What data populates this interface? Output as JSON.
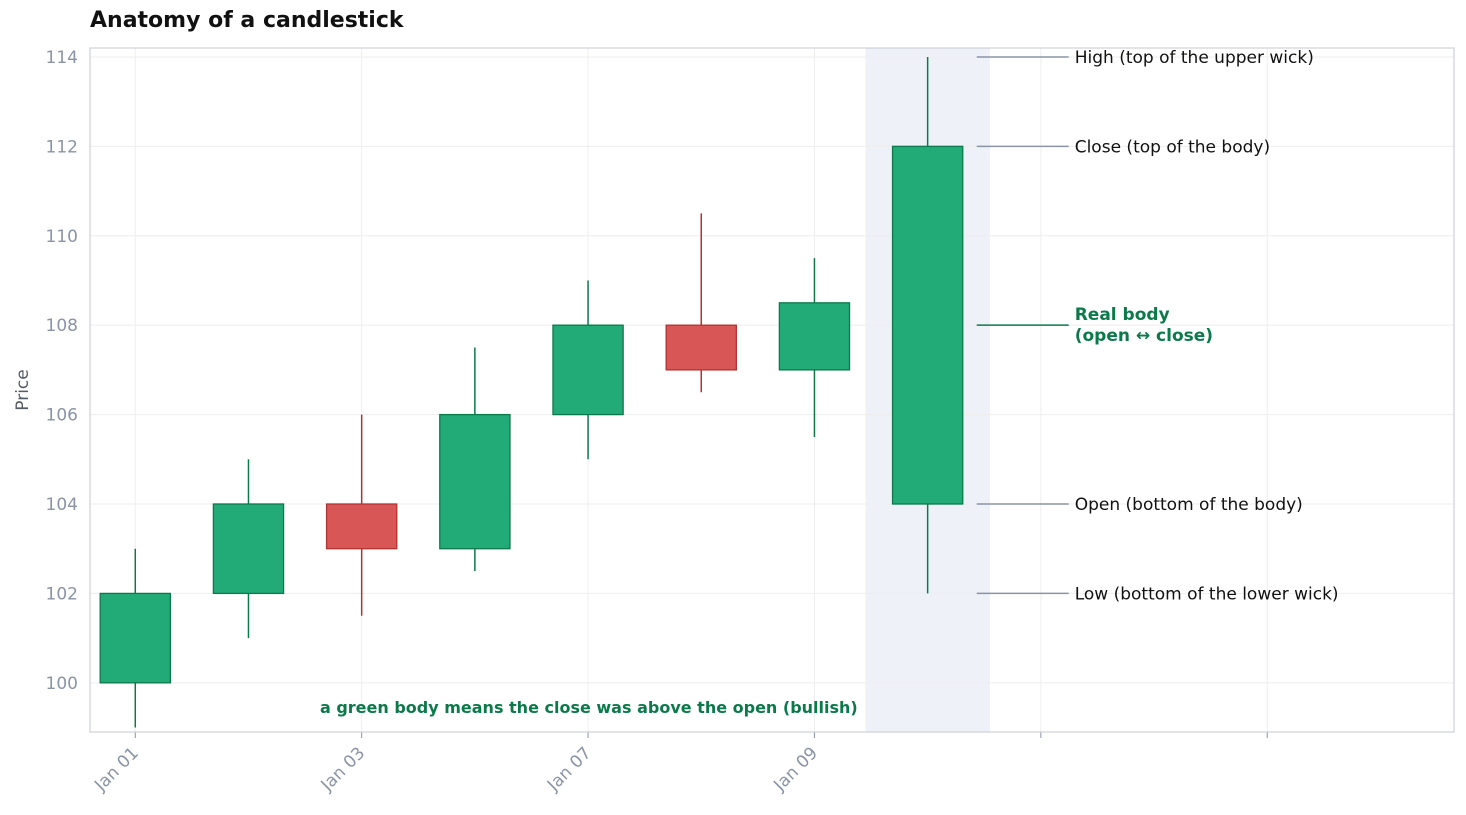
{
  "chart_data": {
    "type": "candlestick",
    "title": "Anatomy of a candlestick",
    "ylabel": "Price",
    "ylim": [
      98.9,
      114.2
    ],
    "yticks": [
      100,
      102,
      104,
      106,
      108,
      110,
      112,
      114
    ],
    "x_tick_labels": [
      "Jan 01",
      "Jan 03",
      "Jan 07",
      "Jan 09",
      "",
      ""
    ],
    "x_tick_index": [
      0,
      2,
      4,
      6,
      8,
      10
    ],
    "xlim": [
      -0.4,
      11.65
    ],
    "colors": {
      "bullish": "#22aa77",
      "bullish_edge": "#0b7a4a",
      "bearish": "#d95656",
      "bearish_edge": "#b53232",
      "grid": "#eeeeee",
      "axis": "#cdd1d8",
      "highlight": "#eef1f8",
      "leader": "#8a94a6",
      "accent_text": "#0b7a4a"
    },
    "candles": [
      {
        "open": 100,
        "high": 103,
        "low": 99,
        "close": 102
      },
      {
        "open": 102,
        "high": 105,
        "low": 101,
        "close": 104
      },
      {
        "open": 104,
        "high": 106,
        "low": 101.5,
        "close": 103
      },
      {
        "open": 103,
        "high": 107.5,
        "low": 102.5,
        "close": 106
      },
      {
        "open": 106,
        "high": 109,
        "low": 105,
        "close": 108
      },
      {
        "open": 108,
        "high": 110.5,
        "low": 106.5,
        "close": 107
      },
      {
        "open": 107,
        "high": 109.5,
        "low": 105.5,
        "close": 108.5
      },
      {
        "open": 104,
        "high": 114,
        "low": 102,
        "close": 112
      }
    ],
    "highlight_index": 7,
    "annotations": [
      {
        "label": "High  (top of the upper wick)",
        "y": 114,
        "emphasis": false
      },
      {
        "label": "Close  (top of the body)",
        "y": 112,
        "emphasis": false
      },
      {
        "label_lines": [
          "Real body",
          "(open ↔ close)"
        ],
        "y": 108,
        "emphasis": true
      },
      {
        "label": "Open  (bottom of the body)",
        "y": 104,
        "emphasis": false
      },
      {
        "label": "Low  (bottom of the lower wick)",
        "y": 102,
        "emphasis": false
      }
    ],
    "note": "a green body means the close was above the open (bullish)"
  }
}
